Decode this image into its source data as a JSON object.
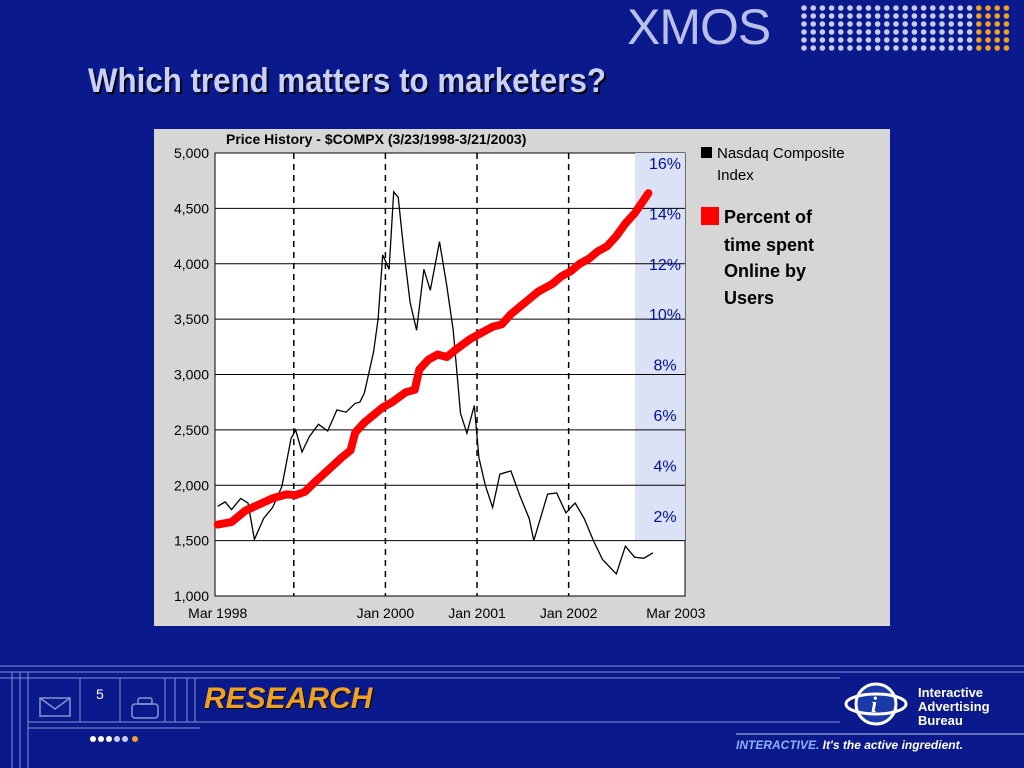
{
  "slide": {
    "title": "Which trend matters to marketers?",
    "logo": "XMOS",
    "page_number": "5",
    "footer_section": "RESEARCH",
    "iab_name": [
      "Interactive",
      "Advertising",
      "Bureau"
    ],
    "tagline_accent": "INTERACTIVE.",
    "tagline_rest": " It's the active ingredient.",
    "colors": {
      "background": "#0a1a8c",
      "accent_red": "#ff0000",
      "research_orange": "#f0a020",
      "percent_band": "#dce2f5"
    }
  },
  "chart_data": {
    "type": "line",
    "title": "Price History - $COMPX (3/23/1998-3/21/2003)",
    "y_left": {
      "min": 1000,
      "max": 5000,
      "ticks": [
        "1,000",
        "1,500",
        "2,000",
        "2,500",
        "3,000",
        "3,500",
        "4,000",
        "4,500",
        "5,000"
      ]
    },
    "y_right": {
      "ticks": [
        "2%",
        "4%",
        "6%",
        "8%",
        "10%",
        "12%",
        "14%",
        "16%"
      ]
    },
    "x_ticks": [
      {
        "label": "Mar 1998",
        "t": 0.0
      },
      {
        "label": "Jan 2000",
        "t": 1.83
      },
      {
        "label": "Jan 2001",
        "t": 2.83
      },
      {
        "label": "Jan 2002",
        "t": 3.83
      },
      {
        "label": "Mar 2003",
        "t": 5.0
      }
    ],
    "dashed_gridlines_t": [
      0.83,
      1.83,
      2.83,
      3.83
    ],
    "x_range": [
      -0.03,
      5.1
    ],
    "series": [
      {
        "name": "Nasdaq Composite Index",
        "axis": "left",
        "points": [
          [
            0,
            1810
          ],
          [
            0.08,
            1850
          ],
          [
            0.15,
            1780
          ],
          [
            0.25,
            1880
          ],
          [
            0.33,
            1840
          ],
          [
            0.4,
            1510
          ],
          [
            0.5,
            1700
          ],
          [
            0.6,
            1800
          ],
          [
            0.7,
            1990
          ],
          [
            0.8,
            2420
          ],
          [
            0.85,
            2500
          ],
          [
            0.92,
            2300
          ],
          [
            1.0,
            2440
          ],
          [
            1.1,
            2550
          ],
          [
            1.2,
            2490
          ],
          [
            1.3,
            2680
          ],
          [
            1.4,
            2660
          ],
          [
            1.5,
            2740
          ],
          [
            1.55,
            2750
          ],
          [
            1.6,
            2830
          ],
          [
            1.7,
            3200
          ],
          [
            1.75,
            3500
          ],
          [
            1.8,
            4080
          ],
          [
            1.87,
            3950
          ],
          [
            1.92,
            4650
          ],
          [
            1.97,
            4600
          ],
          [
            2.03,
            4130
          ],
          [
            2.1,
            3650
          ],
          [
            2.17,
            3400
          ],
          [
            2.25,
            3950
          ],
          [
            2.32,
            3760
          ],
          [
            2.42,
            4200
          ],
          [
            2.5,
            3800
          ],
          [
            2.57,
            3400
          ],
          [
            2.65,
            2650
          ],
          [
            2.72,
            2470
          ],
          [
            2.8,
            2720
          ],
          [
            2.85,
            2250
          ],
          [
            2.92,
            2000
          ],
          [
            3.0,
            1800
          ],
          [
            3.08,
            2100
          ],
          [
            3.2,
            2130
          ],
          [
            3.3,
            1900
          ],
          [
            3.4,
            1700
          ],
          [
            3.45,
            1500
          ],
          [
            3.6,
            1920
          ],
          [
            3.7,
            1930
          ],
          [
            3.8,
            1750
          ],
          [
            3.9,
            1840
          ],
          [
            4.0,
            1700
          ],
          [
            4.1,
            1500
          ],
          [
            4.2,
            1330
          ],
          [
            4.35,
            1200
          ],
          [
            4.45,
            1450
          ],
          [
            4.55,
            1350
          ],
          [
            4.65,
            1340
          ],
          [
            4.75,
            1390
          ]
        ]
      },
      {
        "name": "Percent of time spent Online by Users",
        "axis": "right",
        "points": [
          [
            0,
            1.65
          ],
          [
            0.15,
            1.75
          ],
          [
            0.3,
            2.2
          ],
          [
            0.45,
            2.45
          ],
          [
            0.6,
            2.7
          ],
          [
            0.75,
            2.85
          ],
          [
            0.85,
            2.82
          ],
          [
            0.95,
            2.95
          ],
          [
            1.05,
            3.3
          ],
          [
            1.2,
            3.8
          ],
          [
            1.35,
            4.3
          ],
          [
            1.45,
            4.6
          ],
          [
            1.5,
            5.3
          ],
          [
            1.6,
            5.7
          ],
          [
            1.7,
            6.0
          ],
          [
            1.8,
            6.3
          ],
          [
            1.9,
            6.5
          ],
          [
            2.05,
            6.9
          ],
          [
            2.15,
            7.0
          ],
          [
            2.2,
            7.8
          ],
          [
            2.3,
            8.2
          ],
          [
            2.4,
            8.4
          ],
          [
            2.5,
            8.3
          ],
          [
            2.6,
            8.6
          ],
          [
            2.75,
            9.0
          ],
          [
            2.9,
            9.3
          ],
          [
            3.0,
            9.5
          ],
          [
            3.1,
            9.6
          ],
          [
            3.2,
            10.0
          ],
          [
            3.3,
            10.3
          ],
          [
            3.4,
            10.6
          ],
          [
            3.5,
            10.9
          ],
          [
            3.65,
            11.2
          ],
          [
            3.75,
            11.5
          ],
          [
            3.85,
            11.7
          ],
          [
            3.95,
            12.0
          ],
          [
            4.05,
            12.2
          ],
          [
            4.15,
            12.5
          ],
          [
            4.25,
            12.7
          ],
          [
            4.35,
            13.1
          ],
          [
            4.45,
            13.6
          ],
          [
            4.55,
            14.0
          ],
          [
            4.7,
            14.8
          ]
        ]
      }
    ],
    "legend": {
      "index_label_lines": [
        "Nasdaq Composite",
        "Index"
      ],
      "percent_label_lines": [
        "Percent of",
        "time spent",
        "Online by",
        "Users"
      ]
    }
  }
}
